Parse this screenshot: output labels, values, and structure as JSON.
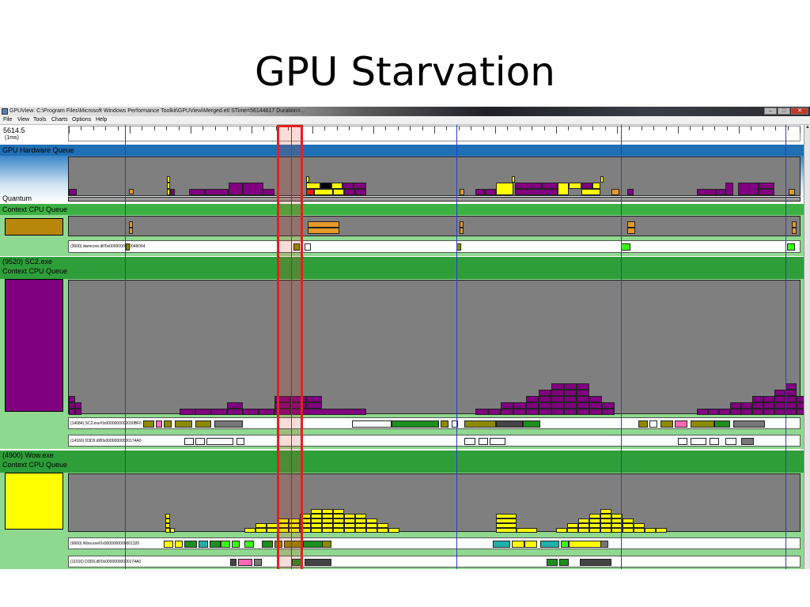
{
  "slide": {
    "title": "GPU Starvation"
  },
  "window": {
    "title": "GPUView: C:\\Program Files\\Microsoft Windows Performance Toolkit\\GPUView\\Merged.etl STime=56144617 Duration=...",
    "buttons": {
      "minimize": "–",
      "maximize": "□",
      "close": "✕"
    }
  },
  "menu": [
    "File",
    "View",
    "Tools",
    "Charts",
    "Options",
    "Help"
  ],
  "ruler": {
    "time": "5614.5",
    "unit": "(1ms)"
  },
  "sections": {
    "gpu_hw_queue": {
      "title": "GPU Hardware Queue",
      "quantum": "Quantum",
      "color": "#1f6fb5"
    },
    "dwm": {
      "title": "Context CPU Queue",
      "swatch_color": "#b8860b",
      "thread": "(3600) dwmcore.dll!0x0000000000048D64"
    },
    "sc2": {
      "title": "(9520) SC2.exe",
      "subtitle": "Context CPU Queue",
      "swatch_color": "#800080",
      "threads": [
        "(14084) SC2.exe!0x0000000000030BF0",
        "(14160) D3D9.dll!0x00000000000174A0"
      ]
    },
    "wow": {
      "title": "(4900) Wow.exe",
      "subtitle": "Context CPU Queue",
      "swatch_color": "#ffff00",
      "threads": [
        "(9660) Wow.exe!0x0000000000001320",
        "(11016) D3D9.dll!0x00000000000174A0"
      ]
    }
  },
  "colors": {
    "green_band": "#3cb043",
    "light_band": "#8fd88f",
    "panel_gray": "#7f7f7f",
    "vsync": "#2a3ec4",
    "highlight": "#e4201d",
    "purple": "#800080",
    "yellow": "#ffff00",
    "orange": "#e69a28"
  }
}
